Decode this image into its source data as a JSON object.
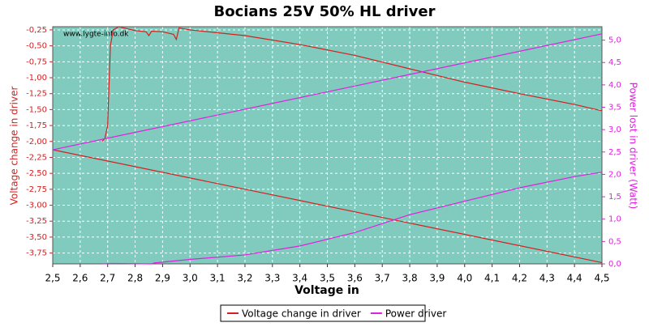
{
  "chart_data": {
    "type": "line",
    "title": "Bocians 25V 50% HL driver",
    "watermark": "www.lygte-info.dk",
    "xlabel": "Voltage in",
    "ylabel": "Voltage change in driver",
    "y2label": "Power lost in driver (Watt)",
    "grid": true,
    "legend": "bottom",
    "xlim": [
      2.5,
      4.5
    ],
    "ylim": [
      -3.92,
      -0.2
    ],
    "y2lim": [
      0,
      5.3
    ],
    "xticks": [
      {
        "value": 2.5,
        "label": "2,5"
      },
      {
        "value": 2.6,
        "label": "2,6"
      },
      {
        "value": 2.7,
        "label": "2,7"
      },
      {
        "value": 2.8,
        "label": "2,8"
      },
      {
        "value": 2.9,
        "label": "2,9"
      },
      {
        "value": 3.0,
        "label": "3,0"
      },
      {
        "value": 3.1,
        "label": "3,1"
      },
      {
        "value": 3.2,
        "label": "3,2"
      },
      {
        "value": 3.3,
        "label": "3,3"
      },
      {
        "value": 3.4,
        "label": "3,4"
      },
      {
        "value": 3.5,
        "label": "3,5"
      },
      {
        "value": 3.6,
        "label": "3,6"
      },
      {
        "value": 3.7,
        "label": "3,7"
      },
      {
        "value": 3.8,
        "label": "3,8"
      },
      {
        "value": 3.9,
        "label": "3,9"
      },
      {
        "value": 4.0,
        "label": "4,0"
      },
      {
        "value": 4.1,
        "label": "4,1"
      },
      {
        "value": 4.2,
        "label": "4,2"
      },
      {
        "value": 4.3,
        "label": "4,3"
      },
      {
        "value": 4.4,
        "label": "4,4"
      },
      {
        "value": 4.5,
        "label": "4,5"
      }
    ],
    "yticks": [
      {
        "value": -0.25,
        "label": "-0,25"
      },
      {
        "value": -0.5,
        "label": "-0,50"
      },
      {
        "value": -0.75,
        "label": "-0,75"
      },
      {
        "value": -1.0,
        "label": "-1,00"
      },
      {
        "value": -1.25,
        "label": "-1,25"
      },
      {
        "value": -1.5,
        "label": "-1,50"
      },
      {
        "value": -1.75,
        "label": "-1,75"
      },
      {
        "value": -2.0,
        "label": "-2,00"
      },
      {
        "value": -2.25,
        "label": "-2,25"
      },
      {
        "value": -2.5,
        "label": "-2,50"
      },
      {
        "value": -2.75,
        "label": "-2,75"
      },
      {
        "value": -3.0,
        "label": "-3,00"
      },
      {
        "value": -3.25,
        "label": "-3,25"
      },
      {
        "value": -3.5,
        "label": "-3,50"
      },
      {
        "value": -3.75,
        "label": "-3,75"
      }
    ],
    "y2ticks": [
      {
        "value": 0,
        "label": "0,0"
      },
      {
        "value": 0.5,
        "label": "0,5"
      },
      {
        "value": 1.0,
        "label": "1,0"
      },
      {
        "value": 1.5,
        "label": "1,5"
      },
      {
        "value": 2.0,
        "label": "2,0"
      },
      {
        "value": 2.5,
        "label": "2,5"
      },
      {
        "value": 3.0,
        "label": "3,0"
      },
      {
        "value": 3.5,
        "label": "3,5"
      },
      {
        "value": 4.0,
        "label": "4,0"
      },
      {
        "value": 4.5,
        "label": "4,5"
      },
      {
        "value": 5.0,
        "label": "5,0"
      }
    ],
    "series": [
      {
        "name": "Voltage change in driver",
        "color": "#d42020",
        "x": [
          2.68,
          2.69,
          2.7,
          2.71,
          2.72,
          2.74,
          2.76,
          2.8,
          2.84,
          2.85,
          2.86,
          2.9,
          2.94,
          2.95,
          2.96,
          3.0,
          3.2,
          3.4,
          3.6,
          3.8,
          4.0,
          4.2,
          4.4,
          4.5
        ],
        "values": [
          -2.0,
          -1.95,
          -1.75,
          -0.5,
          -0.25,
          -0.2,
          -0.22,
          -0.26,
          -0.28,
          -0.34,
          -0.27,
          -0.28,
          -0.32,
          -0.4,
          -0.22,
          -0.25,
          -0.34,
          -0.48,
          -0.65,
          -0.86,
          -1.07,
          -1.25,
          -1.42,
          -1.52
        ]
      },
      {
        "color": "#d42020",
        "x": [
          2.5,
          4.5
        ],
        "values": [
          -2.13,
          -3.9
        ]
      },
      {
        "name": "Power driver",
        "color": "#e020e0",
        "axis": "y2",
        "x": [
          2.68,
          2.72,
          2.86,
          2.87,
          3.0,
          3.2,
          3.4,
          3.6,
          3.8,
          4.0,
          4.2,
          4.4,
          4.5
        ],
        "values": [
          0.0,
          0.01,
          0.0,
          0.02,
          0.1,
          0.2,
          0.4,
          0.7,
          1.1,
          1.4,
          1.7,
          1.95,
          2.05
        ]
      },
      {
        "color": "#e020e0",
        "axis": "y2",
        "x": [
          2.5,
          4.5
        ],
        "values": [
          2.55,
          5.14
        ]
      }
    ]
  }
}
